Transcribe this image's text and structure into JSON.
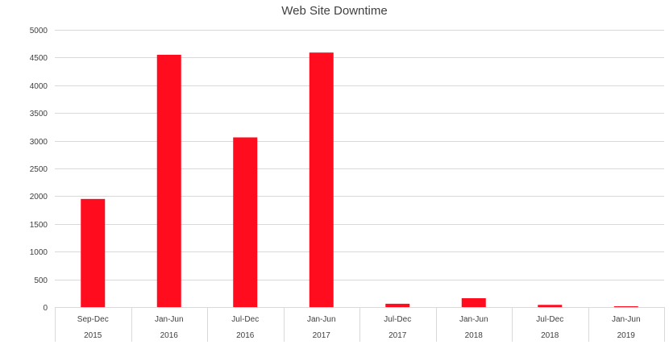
{
  "chart_data": {
    "type": "bar",
    "title": "Web Site Downtime",
    "xlabel": "",
    "ylabel": "",
    "categories": [
      [
        "Sep-Dec",
        "2015"
      ],
      [
        "Jan-Jun",
        "2016"
      ],
      [
        "Jul-Dec",
        "2016"
      ],
      [
        "Jan-Jun",
        "2017"
      ],
      [
        "Jul-Dec",
        "2017"
      ],
      [
        "Jan-Jun",
        "2018"
      ],
      [
        "Jul-Dec",
        "2018"
      ],
      [
        "Jan-Jun",
        "2019"
      ]
    ],
    "values": [
      1950,
      4550,
      3060,
      4590,
      60,
      160,
      40,
      15
    ],
    "ylim": [
      0,
      5000
    ],
    "yticks": [
      0,
      500,
      1000,
      1500,
      2000,
      2500,
      3000,
      3500,
      4000,
      4500,
      5000
    ],
    "grid": true,
    "bar_color": "#ff0d1f"
  }
}
